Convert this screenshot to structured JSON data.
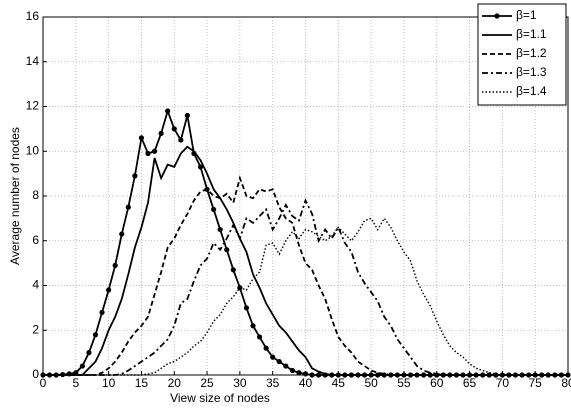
{
  "chart_data": {
    "type": "line",
    "x_label": "View size of nodes",
    "y_label": "Average number of nodes",
    "x": [
      0,
      1,
      2,
      3,
      4,
      5,
      6,
      7,
      8,
      9,
      10,
      11,
      12,
      13,
      14,
      15,
      16,
      17,
      18,
      19,
      20,
      21,
      22,
      23,
      24,
      25,
      26,
      27,
      28,
      29,
      30,
      31,
      32,
      33,
      34,
      35,
      36,
      37,
      38,
      39,
      40,
      41,
      42,
      43,
      44,
      45,
      46,
      47,
      48,
      49,
      50,
      51,
      52,
      53,
      54,
      55,
      56,
      57,
      58,
      59,
      60,
      61,
      62,
      63,
      64,
      65,
      66,
      67,
      68,
      69,
      70,
      71,
      72,
      73,
      74,
      75,
      76,
      77,
      78,
      79,
      80
    ],
    "series": [
      {
        "name": "β=1",
        "color": "#000000",
        "values": [
          0,
          0,
          0,
          0.02,
          0.05,
          0.1,
          0.4,
          1.0,
          1.8,
          2.8,
          3.8,
          4.9,
          6.3,
          7.5,
          8.9,
          10.6,
          9.9,
          10,
          10.8,
          11.8,
          11,
          10.5,
          11.6,
          9.9,
          9.3,
          8.3,
          7.4,
          6.5,
          5.6,
          4.7,
          3.9,
          3.0,
          2.2,
          1.7,
          1.2,
          0.8,
          0.6,
          0.4,
          0.2,
          0.1,
          0.05,
          0,
          0,
          0,
          0,
          0,
          0,
          0,
          0,
          0,
          0,
          0,
          0,
          0,
          0,
          0,
          0,
          0,
          0,
          0,
          0,
          0,
          0,
          0,
          0,
          0,
          0,
          0,
          0,
          0,
          0,
          0,
          0,
          0,
          0,
          0,
          0,
          0,
          0,
          0,
          0
        ]
      },
      {
        "name": "β=1.1",
        "color": "#000000",
        "values": [
          0,
          0,
          0,
          0,
          0,
          0,
          0,
          0.3,
          0.6,
          1.2,
          2.0,
          2.6,
          3.4,
          4.5,
          5.7,
          6.6,
          7.7,
          9.7,
          8.8,
          9.4,
          9.3,
          9.9,
          10.2,
          10,
          9.6,
          9.0,
          8.3,
          7.9,
          7.4,
          6.8,
          6.1,
          5.5,
          4.5,
          3.9,
          3.2,
          2.7,
          2.2,
          1.9,
          1.5,
          1.1,
          0.8,
          0.3,
          0.15,
          0.05,
          0,
          0,
          0,
          0,
          0,
          0,
          0,
          0,
          0,
          0,
          0,
          0,
          0,
          0,
          0,
          0,
          0,
          0,
          0,
          0,
          0,
          0,
          0,
          0,
          0,
          0,
          0,
          0,
          0,
          0,
          0,
          0,
          0,
          0,
          0,
          0,
          0
        ]
      },
      {
        "name": "β=1.2",
        "color": "#000000",
        "values": [
          0,
          0,
          0,
          0,
          0,
          0,
          0,
          0,
          0,
          0.1,
          0.3,
          0.6,
          1.0,
          1.5,
          1.9,
          2.2,
          2.6,
          3.6,
          4.6,
          5.7,
          6.1,
          6.7,
          7.2,
          7.8,
          8.2,
          8.3,
          8.0,
          7.9,
          8.1,
          7.7,
          8.8,
          8.0,
          7.9,
          8.3,
          8.2,
          8.3,
          7.5,
          7.0,
          6.8,
          5.8,
          5.0,
          4.7,
          4.0,
          3.4,
          2.5,
          1.7,
          1.3,
          1.0,
          0.6,
          0.4,
          0.2,
          0.1,
          0.05,
          0,
          0,
          0,
          0,
          0,
          0,
          0,
          0,
          0,
          0,
          0,
          0,
          0,
          0,
          0,
          0,
          0,
          0,
          0,
          0,
          0,
          0,
          0,
          0,
          0,
          0,
          0,
          0
        ]
      },
      {
        "name": "β=1.3",
        "color": "#000000",
        "values": [
          0,
          0,
          0,
          0,
          0,
          0,
          0,
          0,
          0,
          0,
          0,
          0,
          0.05,
          0.2,
          0.4,
          0.6,
          0.8,
          1.0,
          1.3,
          1.6,
          2.2,
          3.2,
          3.4,
          4.2,
          4.9,
          5.2,
          5.9,
          5.6,
          6.1,
          6.7,
          6.1,
          7.0,
          6.8,
          7.1,
          7.4,
          6.5,
          7.0,
          7.6,
          7.1,
          6.9,
          7.8,
          7.2,
          6.0,
          6.5,
          6.1,
          6.6,
          5.9,
          5.5,
          4.6,
          4.1,
          3.7,
          3.3,
          2.6,
          2.2,
          1.6,
          1.2,
          0.8,
          0.4,
          0.2,
          0.1,
          0.05,
          0,
          0,
          0,
          0,
          0,
          0,
          0,
          0,
          0,
          0,
          0,
          0,
          0,
          0,
          0,
          0,
          0,
          0,
          0,
          0
        ]
      },
      {
        "name": "β=1.4",
        "color": "#000000",
        "values": [
          0,
          0,
          0,
          0,
          0,
          0,
          0,
          0,
          0,
          0,
          0,
          0,
          0,
          0,
          0,
          0,
          0.05,
          0.1,
          0.3,
          0.5,
          0.6,
          0.8,
          1.0,
          1.3,
          1.5,
          1.9,
          2.4,
          2.7,
          3.2,
          3.5,
          3.9,
          3.8,
          4.3,
          4.6,
          5.8,
          5.9,
          5.4,
          6.0,
          6.4,
          6.1,
          6.5,
          6.4,
          6.2,
          6.0,
          6.2,
          6.6,
          6.3,
          6.0,
          6.4,
          6.9,
          7.0,
          6.5,
          7.0,
          6.6,
          6.0,
          5.5,
          5.1,
          4.2,
          3.6,
          3.1,
          2.4,
          1.8,
          1.3,
          1.0,
          0.8,
          0.5,
          0.3,
          0.2,
          0.1,
          0.05,
          0,
          0,
          0,
          0,
          0,
          0,
          0,
          0,
          0,
          0,
          0
        ]
      }
    ],
    "xlim": [
      0,
      80
    ],
    "xticks": [
      0,
      5,
      10,
      15,
      20,
      25,
      30,
      35,
      40,
      45,
      50,
      55,
      60,
      65,
      70,
      75,
      80
    ],
    "ylim": [
      0,
      16
    ],
    "yticks": [
      0,
      2,
      4,
      6,
      8,
      10,
      12,
      14,
      16
    ],
    "grid": true,
    "legend": "upper right"
  }
}
